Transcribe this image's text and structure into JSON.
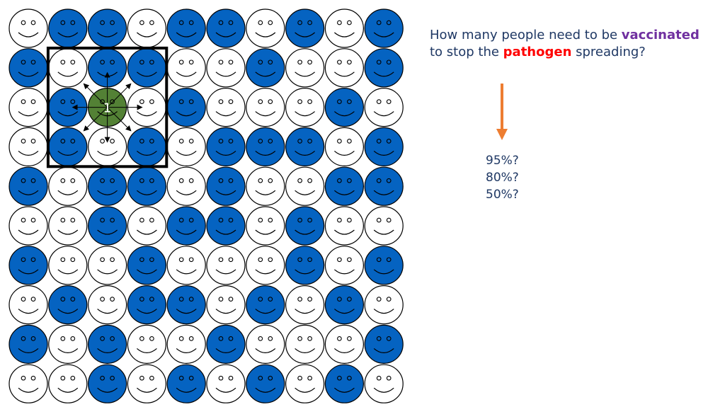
{
  "question": {
    "part1": "How many people need to be ",
    "vaccinated": "vaccinated",
    "part2": "to stop the ",
    "pathogen": "pathogen",
    "part3": " spreading?"
  },
  "options": [
    "95%?",
    "80%?",
    "50%?"
  ],
  "infected_label": "1",
  "colors": {
    "vaccinated": "#0563c1",
    "unvaccinated": "#ffffff",
    "infected": "#538135",
    "vaccinated_word": "#7030a0",
    "pathogen_word": "#ff0000",
    "text": "#1f3864",
    "arrow": "#ed7d31"
  },
  "people_grid": [
    [
      0,
      1,
      1,
      0,
      1,
      1,
      0,
      1,
      0,
      1
    ],
    [
      1,
      0,
      1,
      1,
      0,
      0,
      1,
      0,
      0,
      1
    ],
    [
      0,
      1,
      2,
      0,
      1,
      0,
      0,
      0,
      1,
      0
    ],
    [
      0,
      1,
      0,
      1,
      0,
      1,
      1,
      1,
      0,
      1
    ],
    [
      1,
      0,
      1,
      1,
      0,
      1,
      0,
      0,
      1,
      1
    ],
    [
      0,
      0,
      1,
      0,
      1,
      1,
      0,
      1,
      0,
      0
    ],
    [
      1,
      0,
      0,
      1,
      0,
      0,
      0,
      1,
      0,
      1
    ],
    [
      0,
      1,
      0,
      1,
      1,
      0,
      1,
      0,
      1,
      0
    ],
    [
      1,
      0,
      1,
      0,
      0,
      1,
      0,
      0,
      0,
      1
    ],
    [
      0,
      0,
      1,
      0,
      1,
      0,
      1,
      0,
      1,
      0
    ]
  ],
  "grid_legend": "0 = unvaccinated, 1 = vaccinated, 2 = infected"
}
